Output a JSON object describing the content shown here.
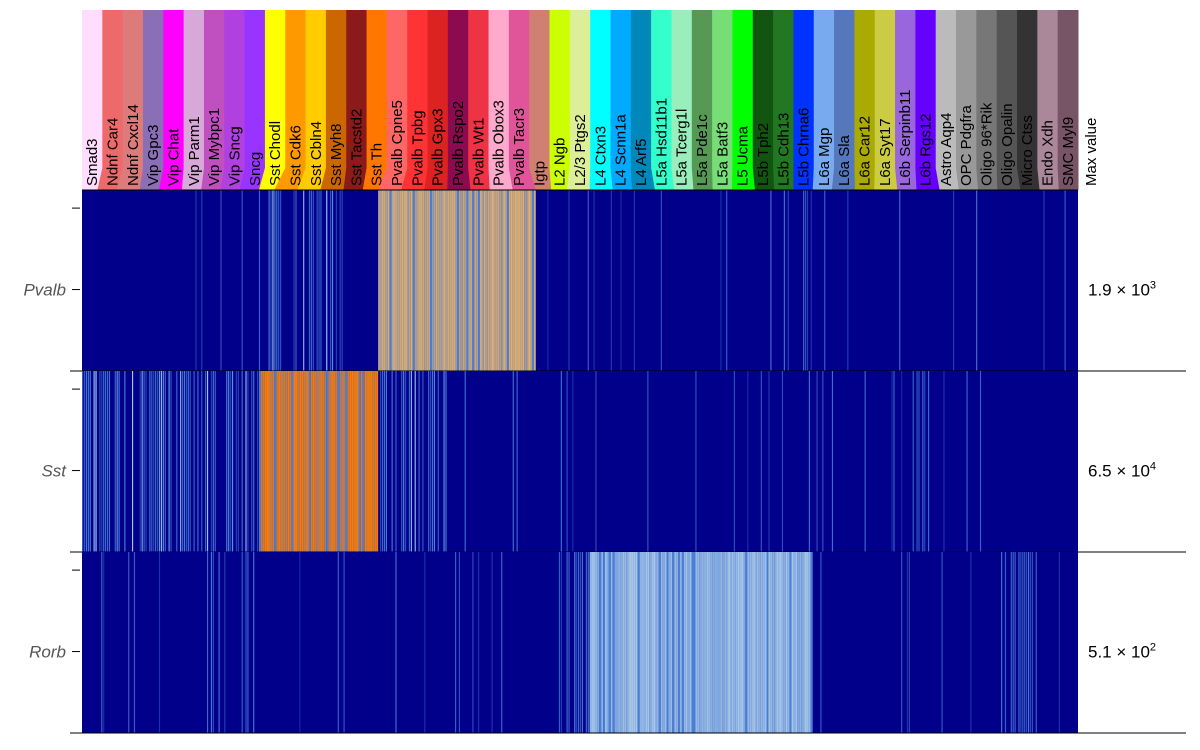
{
  "chart_data": {
    "type": "heatmap",
    "clusters": [
      {
        "name": "Smad3",
        "color": "#FFDDFF",
        "cells": 8
      },
      {
        "name": "Ndnf Car4",
        "color": "#EE6A6A",
        "cells": 10
      },
      {
        "name": "Ndnf Cxcl14",
        "color": "#DD7A7A",
        "cells": 12
      },
      {
        "name": "Vip Gpc3",
        "color": "#8B6FB6",
        "cells": 10
      },
      {
        "name": "Vip Chat",
        "color": "#FF00FF",
        "cells": 12
      },
      {
        "name": "Vip Parm1",
        "color": "#D8A8D8",
        "cells": 10
      },
      {
        "name": "Vip Mybpc1",
        "color": "#C050C0",
        "cells": 10
      },
      {
        "name": "Vip Sncg",
        "color": "#B040E0",
        "cells": 10
      },
      {
        "name": "Sncg",
        "color": "#9933FF",
        "cells": 10
      },
      {
        "name": "Sst Chodl",
        "color": "#FFFF00",
        "cells": 8
      },
      {
        "name": "Sst Cdk6",
        "color": "#FF9900",
        "cells": 12
      },
      {
        "name": "Sst Cbln4",
        "color": "#FFCC00",
        "cells": 12
      },
      {
        "name": "Sst Myh8",
        "color": "#CC6600",
        "cells": 12
      },
      {
        "name": "Sst Tacstd2",
        "color": "#8B1A1A",
        "cells": 10
      },
      {
        "name": "Sst Th",
        "color": "#FF7700",
        "cells": 8
      },
      {
        "name": "Pvalb Cpne5",
        "color": "#FF6666",
        "cells": 12
      },
      {
        "name": "Pvalb Tpbg",
        "color": "#FF3333",
        "cells": 12
      },
      {
        "name": "Pvalb Gpx3",
        "color": "#DD2222",
        "cells": 12
      },
      {
        "name": "Pvalb Rspo2",
        "color": "#8B0A50",
        "cells": 12
      },
      {
        "name": "Pvalb Wt1",
        "color": "#EE3344",
        "cells": 10
      },
      {
        "name": "Pvalb Obox3",
        "color": "#FFAACC",
        "cells": 12
      },
      {
        "name": "Pvalb Tacr3",
        "color": "#E0559A",
        "cells": 12
      },
      {
        "name": "Igtp",
        "color": "#D08070",
        "cells": 8
      },
      {
        "name": "L2 Ngb",
        "color": "#CCFF00",
        "cells": 8
      },
      {
        "name": "L2/3 Ptgs2",
        "color": "#DDEE99",
        "cells": 12
      },
      {
        "name": "L4 Ctxn3",
        "color": "#00FFFF",
        "cells": 12
      },
      {
        "name": "L4 Scnn1a",
        "color": "#00AAFF",
        "cells": 10
      },
      {
        "name": "L4 Arf5",
        "color": "#0088BB",
        "cells": 12
      },
      {
        "name": "L5a Hsd11b1",
        "color": "#33FFCC",
        "cells": 10
      },
      {
        "name": "L5a Tcerg1l",
        "color": "#99EEBB",
        "cells": 10
      },
      {
        "name": "L5a Pde1c",
        "color": "#559955",
        "cells": 10
      },
      {
        "name": "L5a Batf3",
        "color": "#77DD77",
        "cells": 10
      },
      {
        "name": "L5 Ucma",
        "color": "#00FF00",
        "cells": 12
      },
      {
        "name": "L5b Tph2",
        "color": "#115511",
        "cells": 10
      },
      {
        "name": "L5b Cdh13",
        "color": "#227722",
        "cells": 10
      },
      {
        "name": "L5b Chrna6",
        "color": "#0033FF",
        "cells": 10
      },
      {
        "name": "L6a Mgp",
        "color": "#77AAEE",
        "cells": 10
      },
      {
        "name": "L6a Sla",
        "color": "#5577BB",
        "cells": 12
      },
      {
        "name": "L6a Car12",
        "color": "#AAAA00",
        "cells": 10
      },
      {
        "name": "L6a Syt17",
        "color": "#CCCC44",
        "cells": 12
      },
      {
        "name": "L6b Serpinb11",
        "color": "#9966DD",
        "cells": 10
      },
      {
        "name": "L6b Rgs12",
        "color": "#6600FF",
        "cells": 12
      },
      {
        "name": "Astro Aqp4",
        "color": "#BBBBBB",
        "cells": 10
      },
      {
        "name": "OPC Pdgfra",
        "color": "#999999",
        "cells": 10
      },
      {
        "name": "Oligo 96*Rik",
        "color": "#777777",
        "cells": 10
      },
      {
        "name": "Oligo Opalin",
        "color": "#555555",
        "cells": 12
      },
      {
        "name": "Micro Ctss",
        "color": "#333333",
        "cells": 10
      },
      {
        "name": "Endo Xdh",
        "color": "#AA8899",
        "cells": 10
      },
      {
        "name": "SMC Myl9",
        "color": "#775566",
        "cells": 10
      }
    ],
    "max_value_header": "Max value",
    "genes": [
      {
        "name": "Pvalb",
        "max_value": {
          "mantissa": "1.9",
          "exponent": "3"
        },
        "high_color": "#E0B070",
        "high_clusters": [
          "Pvalb Cpne5",
          "Pvalb Tpbg",
          "Pvalb Gpx3",
          "Pvalb Rspo2",
          "Pvalb Wt1",
          "Pvalb Obox3",
          "Pvalb Tacr3"
        ],
        "mid_clusters": [
          "Sst Chodl",
          "Sst Cdk6",
          "Sst Cbln4",
          "Sst Myh8"
        ]
      },
      {
        "name": "Sst",
        "max_value": {
          "mantissa": "6.5",
          "exponent": "4"
        },
        "high_color": "#FF7A00",
        "high_clusters": [
          "Sst Chodl",
          "Sst Cdk6",
          "Sst Cbln4",
          "Sst Myh8",
          "Sst Tacstd2",
          "Sst Th"
        ],
        "mid_clusters": [
          "Smad3",
          "Ndnf Car4",
          "Ndnf Cxcl14",
          "Vip Gpc3",
          "Vip Chat",
          "Vip Parm1",
          "Vip Mybpc1",
          "Vip Sncg",
          "Sncg",
          "Pvalb Cpne5",
          "Pvalb Tpbg",
          "Pvalb Gpx3"
        ]
      },
      {
        "name": "Rorb",
        "max_value": {
          "mantissa": "5.1",
          "exponent": "2"
        },
        "high_color": "#A8C8E8",
        "high_clusters": [
          "L4 Ctxn3",
          "L4 Scnn1a",
          "L4 Arf5",
          "L5a Hsd11b1",
          "L5a Tcerg1l",
          "L5a Pde1c",
          "L5a Batf3",
          "L5 Ucma",
          "L5b Tph2",
          "L5b Cdh13",
          "L5b Chrna6"
        ],
        "mid_clusters": [
          "L2 Ngb",
          "L2/3 Ptgs2",
          "Oligo Opalin",
          "Micro Ctss",
          "Vip Mybpc1",
          "Sncg"
        ]
      }
    ],
    "background_color": "#00008B",
    "mid_color": "#4A7FD8"
  }
}
